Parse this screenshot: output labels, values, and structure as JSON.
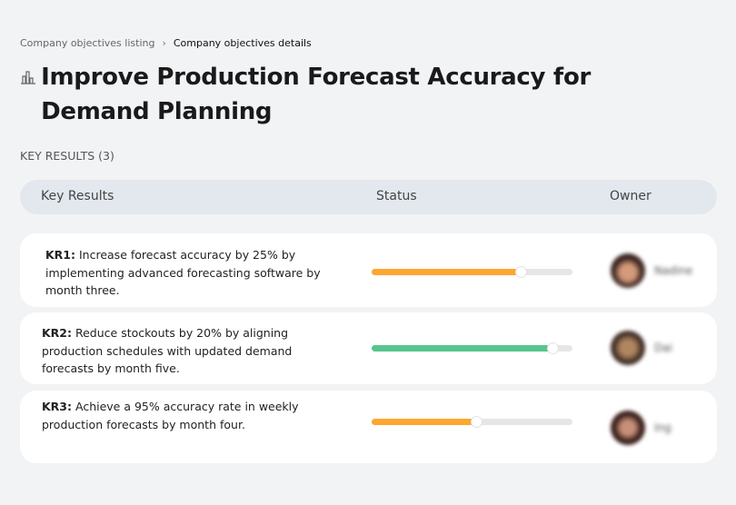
{
  "breadcrumb": {
    "items": [
      "Company objectives listing",
      "Company objectives details"
    ],
    "separator": "›"
  },
  "page": {
    "icon": "building-chart-icon",
    "title": "Improve Production Forecast Accuracy for Demand Planning",
    "key_results_count_label": "KEY RESULTS (3)"
  },
  "table": {
    "headers": {
      "key_results": "Key Results",
      "status": "Status",
      "owner": "Owner"
    },
    "rows": [
      {
        "label": "KR1:",
        "text": " Increase forecast accuracy by 25% by implementing advanced forecasting software by month three.",
        "progress": 74,
        "color": "#ffa630",
        "owner": "Nadine"
      },
      {
        "label": "KR2:",
        "text": " Reduce stockouts by 20% by aligning production schedules with updated demand forecasts by month five.",
        "progress": 90,
        "color": "#56c58d",
        "owner": "Dai"
      },
      {
        "label": "KR3:",
        "text": " Achieve a 95% accuracy rate in weekly production forecasts by month four.",
        "progress": 52,
        "color": "#ffa630",
        "owner": "Ing"
      }
    ]
  }
}
